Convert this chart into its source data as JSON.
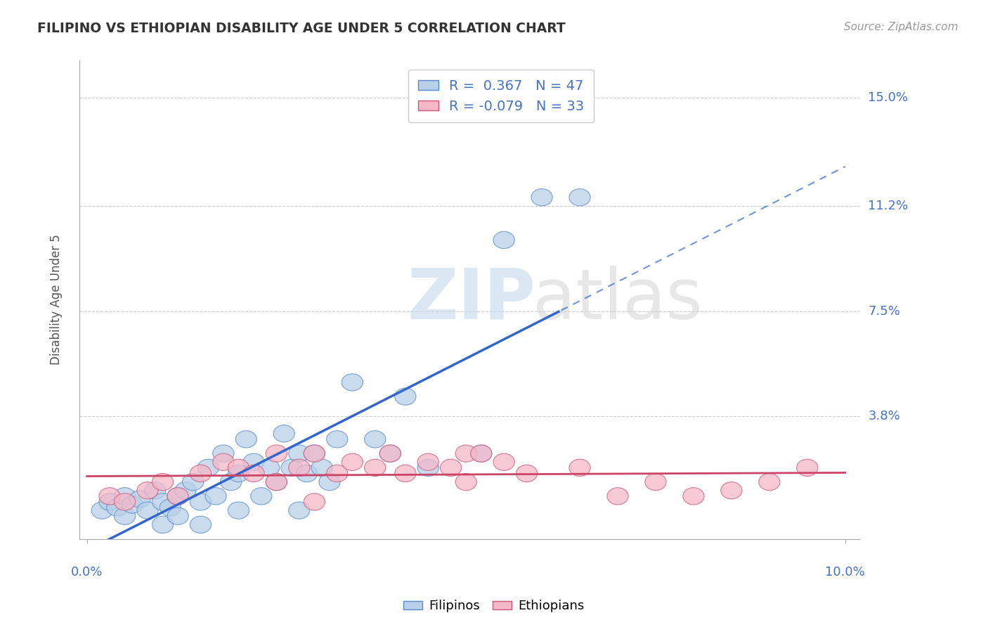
{
  "title": "FILIPINO VS ETHIOPIAN DISABILITY AGE UNDER 5 CORRELATION CHART",
  "source": "Source: ZipAtlas.com",
  "ylabel": "Disability Age Under 5",
  "xmin": 0.0,
  "xmax": 0.1,
  "ymin": -0.005,
  "ymax": 0.163,
  "yticks": [
    0.038,
    0.075,
    0.112,
    0.15
  ],
  "ytick_labels": [
    "3.8%",
    "7.5%",
    "11.2%",
    "15.0%"
  ],
  "xticks": [
    0.0,
    0.1
  ],
  "xtick_labels": [
    "0.0%",
    "10.0%"
  ],
  "r_filipino": 0.367,
  "n_filipino": 47,
  "r_ethiopian": -0.079,
  "n_ethiopian": 33,
  "filipino_fill": "#b8d0e8",
  "filipino_edge": "#5588cc",
  "ethiopian_fill": "#f5b8c8",
  "ethiopian_edge": "#cc5577",
  "filipino_line": "#3366cc",
  "ethiopian_line": "#cc4466",
  "background_color": "#ffffff",
  "grid_color": "#cccccc",
  "filipino_x": [
    0.002,
    0.003,
    0.004,
    0.005,
    0.005,
    0.006,
    0.007,
    0.008,
    0.009,
    0.01,
    0.01,
    0.011,
    0.012,
    0.012,
    0.013,
    0.014,
    0.015,
    0.015,
    0.016,
    0.017,
    0.018,
    0.019,
    0.02,
    0.02,
    0.021,
    0.022,
    0.023,
    0.024,
    0.025,
    0.026,
    0.027,
    0.028,
    0.028,
    0.029,
    0.03,
    0.031,
    0.032,
    0.033,
    0.035,
    0.038,
    0.04,
    0.042,
    0.045,
    0.052,
    0.055,
    0.06,
    0.065
  ],
  "filipino_y": [
    0.005,
    0.008,
    0.006,
    0.01,
    0.003,
    0.007,
    0.009,
    0.005,
    0.012,
    0.008,
    0.0,
    0.006,
    0.01,
    0.003,
    0.012,
    0.015,
    0.008,
    0.0,
    0.02,
    0.01,
    0.025,
    0.015,
    0.018,
    0.005,
    0.03,
    0.022,
    0.01,
    0.02,
    0.015,
    0.032,
    0.02,
    0.025,
    0.005,
    0.018,
    0.025,
    0.02,
    0.015,
    0.03,
    0.05,
    0.03,
    0.025,
    0.045,
    0.02,
    0.025,
    0.1,
    0.115,
    0.115
  ],
  "ethiopian_x": [
    0.003,
    0.005,
    0.008,
    0.01,
    0.012,
    0.015,
    0.018,
    0.02,
    0.022,
    0.025,
    0.025,
    0.028,
    0.03,
    0.03,
    0.033,
    0.035,
    0.038,
    0.04,
    0.042,
    0.045,
    0.048,
    0.05,
    0.05,
    0.052,
    0.055,
    0.058,
    0.065,
    0.07,
    0.075,
    0.08,
    0.085,
    0.09,
    0.095
  ],
  "ethiopian_y": [
    0.01,
    0.008,
    0.012,
    0.015,
    0.01,
    0.018,
    0.022,
    0.02,
    0.018,
    0.025,
    0.015,
    0.02,
    0.025,
    0.008,
    0.018,
    0.022,
    0.02,
    0.025,
    0.018,
    0.022,
    0.02,
    0.025,
    0.015,
    0.025,
    0.022,
    0.018,
    0.02,
    0.01,
    0.015,
    0.01,
    0.012,
    0.015,
    0.02
  ]
}
